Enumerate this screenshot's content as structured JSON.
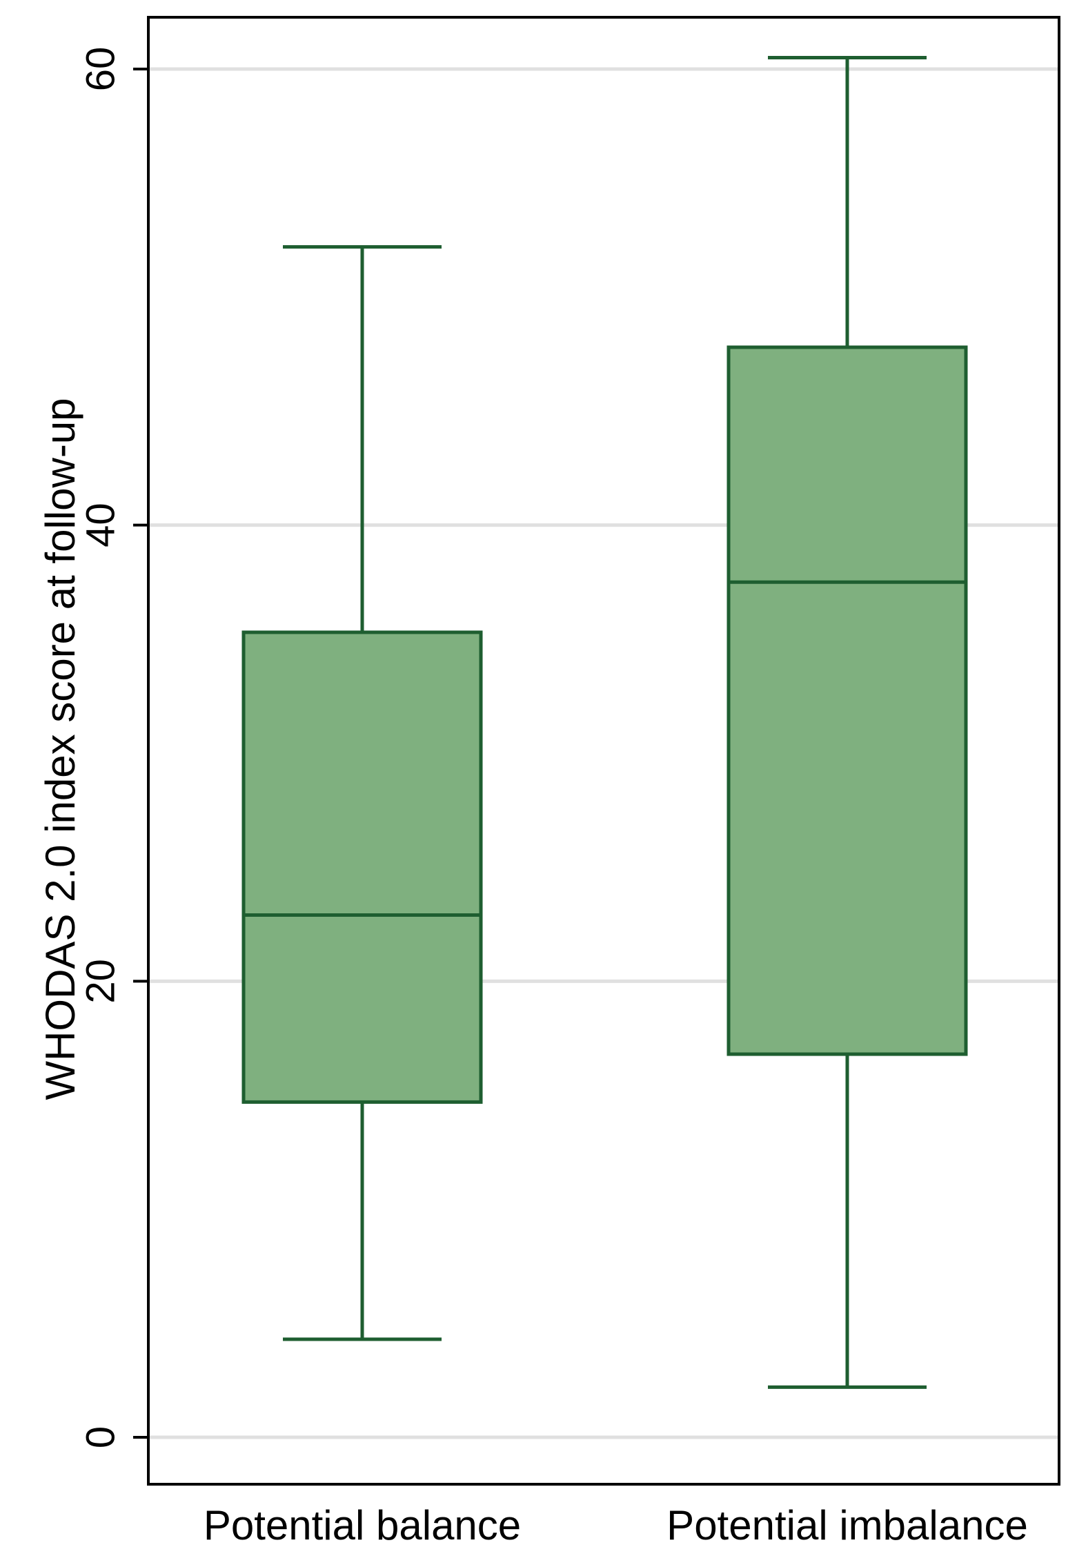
{
  "chart_data": {
    "type": "boxplot",
    "ylabel": "WHODAS 2.0 index score at follow-up",
    "xlabel": "",
    "ylim": [
      0,
      60
    ],
    "yticks": [
      0,
      20,
      40,
      60
    ],
    "grid": true,
    "colors": {
      "fill": "#7fb07f",
      "stroke": "#1e5e30",
      "grid": "#e0e0e0",
      "frame": "#000000"
    },
    "categories": [
      "Potential balance",
      "Potential imbalance"
    ],
    "boxes": [
      {
        "category": "Potential balance",
        "min": 4.3,
        "q1": 14.7,
        "median": 22.9,
        "q3": 35.3,
        "max": 52.2
      },
      {
        "category": "Potential imbalance",
        "min": 2.2,
        "q1": 16.8,
        "median": 37.5,
        "q3": 47.8,
        "max": 60.5
      }
    ]
  }
}
